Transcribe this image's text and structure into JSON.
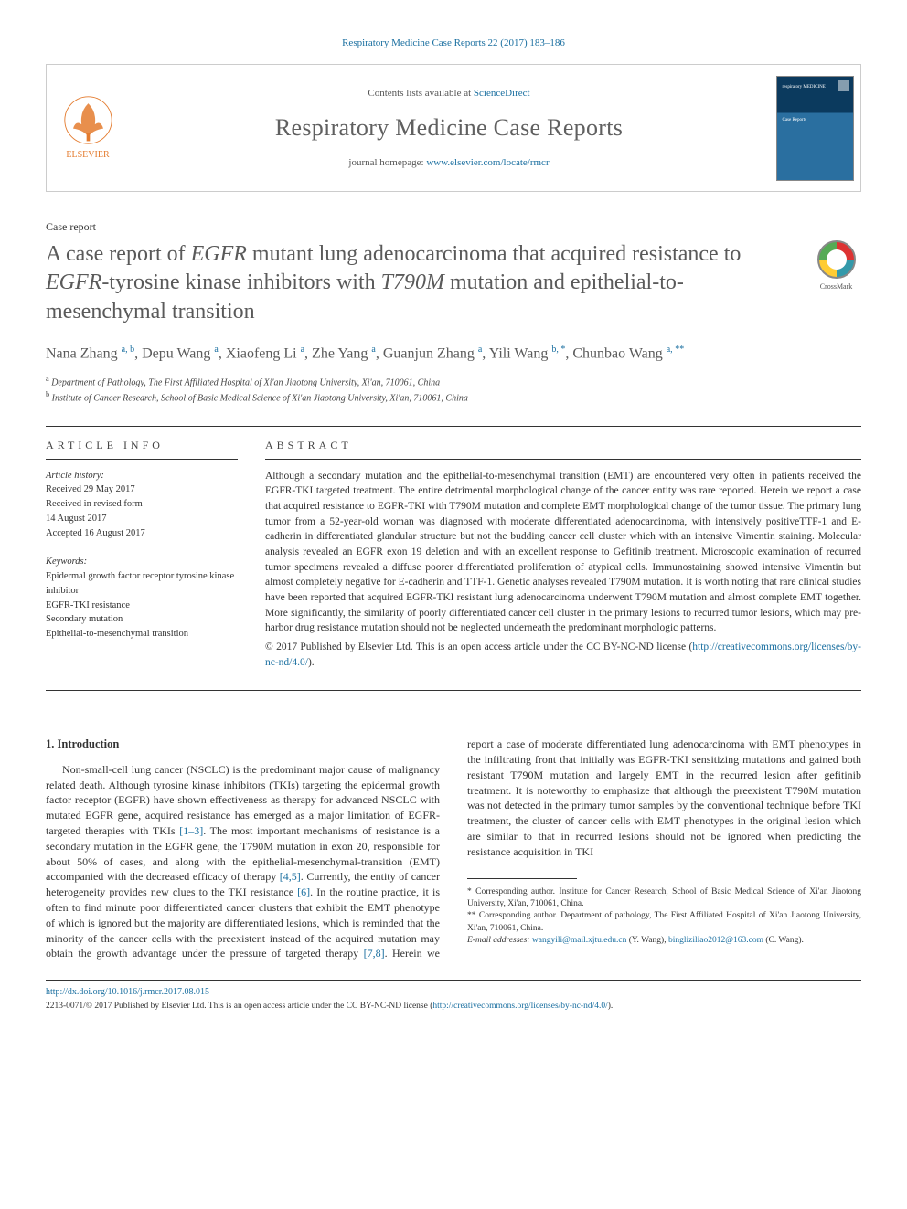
{
  "citation": "Respiratory Medicine Case Reports 22 (2017) 183–186",
  "header": {
    "contents_prefix": "Contents lists available at ",
    "contents_link": "ScienceDirect",
    "journal_name": "Respiratory Medicine Case Reports",
    "homepage_prefix": "journal homepage: ",
    "homepage_link": "www.elsevier.com/locate/rmcr",
    "elsevier_label": "ELSEVIER",
    "cover_top": "respiratory MEDICINE",
    "cover_sub": "Case Reports"
  },
  "doc_type": "Case report",
  "title": "A case report of EGFR mutant lung adenocarcinoma that acquired resistance to EGFR-tyrosine kinase inhibitors with T790M mutation and epithelial-to-mesenchymal transition",
  "crossmark_label": "CrossMark",
  "authors_html": "Nana Zhang <sup>a, b</sup>, Depu Wang <sup>a</sup>, Xiaofeng Li <sup>a</sup>, Zhe Yang <sup>a</sup>, Guanjun Zhang <sup>a</sup>, Yili Wang <sup>b, <span class='star'>*</span></sup>, Chunbao Wang <sup>a, <span class='star'>**</span></sup>",
  "affiliations": [
    {
      "sup": "a",
      "text": "Department of Pathology, The First Affiliated Hospital of Xi'an Jiaotong University, Xi'an, 710061, China"
    },
    {
      "sup": "b",
      "text": "Institute of Cancer Research, School of Basic Medical Science of Xi'an Jiaotong University, Xi'an, 710061, China"
    }
  ],
  "info": {
    "heading": "ARTICLE INFO",
    "history_label": "Article history:",
    "history_lines": [
      "Received 29 May 2017",
      "Received in revised form",
      "14 August 2017",
      "Accepted 16 August 2017"
    ],
    "keywords_label": "Keywords:",
    "keywords": [
      "Epidermal growth factor receptor tyrosine kinase inhibitor",
      "EGFR-TKI resistance",
      "Secondary mutation",
      "Epithelial-to-mesenchymal transition"
    ]
  },
  "abstract": {
    "heading": "ABSTRACT",
    "text": "Although a secondary mutation and the epithelial-to-mesenchymal transition (EMT) are encountered very often in patients received the EGFR-TKI targeted treatment. The entire detrimental morphological change of the cancer entity was rare reported. Herein we report a case that acquired resistance to EGFR-TKI with T790M mutation and complete EMT morphological change of the tumor tissue. The primary lung tumor from a 52-year-old woman was diagnosed with moderate differentiated adenocarcinoma, with intensively positiveTTF-1 and E-cadherin in differentiated glandular structure but not the budding cancer cell cluster which with an intensive Vimentin staining. Molecular analysis revealed an EGFR exon 19 deletion and with an excellent response to Gefitinib treatment. Microscopic examination of recurred tumor specimens revealed a diffuse poorer differentiated proliferation of atypical cells. Immunostaining showed intensive Vimentin but almost completely negative for E-cadherin and TTF-1. Genetic analyses revealed T790M mutation. It is worth noting that rare clinical studies have been reported that acquired EGFR-TKI resistant lung adenocarcinoma underwent T790M mutation and almost complete EMT together. More significantly, the similarity of poorly differentiated cancer cell cluster in the primary lesions to recurred tumor lesions, which may pre-harbor drug resistance mutation should not be neglected underneath the predominant morphologic patterns.",
    "copyright": "© 2017 Published by Elsevier Ltd. This is an open access article under the CC BY-NC-ND license (",
    "license_link_text": "http://creativecommons.org/licenses/by-nc-nd/4.0/",
    "copyright_close": ")."
  },
  "section1": {
    "heading": "1. Introduction",
    "para1": "Non-small-cell lung cancer (NSCLC) is the predominant major cause of malignancy related death. Although tyrosine kinase inhibitors (TKIs) targeting the epidermal growth factor receptor (EGFR) have shown effectiveness as therapy for advanced NSCLC with mutated EGFR gene, acquired resistance has emerged as a major limitation of EGFR-targeted therapies with TKIs ",
    "ref1": "[1–3]",
    "para1b": ". The most important mechanisms of resistance is a secondary mutation in the EGFR gene, the T790M mutation in exon 20, responsible for about 50% of cases, and along with the epithelial-mesenchymal-",
    "para2a": "transition (EMT) accompanied with the decreased efficacy of therapy ",
    "ref2": "[4,5]",
    "para2b": ". Currently, the entity of cancer heterogeneity provides new clues to the TKI resistance ",
    "ref3": "[6]",
    "para2c": ". In the routine practice, it is often to find minute poor differentiated cancer clusters that exhibit the EMT phenotype of which is ignored but the majority are differentiated lesions, which is reminded that the minority of the cancer cells with the preexistent instead of the acquired mutation may obtain the growth advantage under the pressure of targeted therapy ",
    "ref4": "[7,8]",
    "para2d": ". Herein we report a case of moderate differentiated lung adenocarcinoma with EMT phenotypes in the infiltrating front that initially was EGFR-TKI sensitizing mutations and gained both resistant T790M mutation and largely EMT in the recurred lesion after gefitinib treatment. It is noteworthy to emphasize that although the preexistent T790M mutation was not detected in the primary tumor samples by the conventional technique before TKI treatment, the cluster of cancer cells with EMT phenotypes in the original lesion which are similar to that in recurred lesions should not be ignored when predicting the resistance acquisition in TKI"
  },
  "footnotes": {
    "corr1": "* Corresponding author. Institute for Cancer Research, School of Basic Medical Science of Xi'an Jiaotong University, Xi'an, 710061, China.",
    "corr2": "** Corresponding author. Department of pathology, The First Affiliated Hospital of Xi'an Jiaotong University, Xi'an, 710061, China.",
    "email_label": "E-mail addresses: ",
    "email1": "wangyili@mail.xjtu.edu.cn",
    "email1_name": " (Y. Wang), ",
    "email2": "bingliziliao2012@163.com",
    "email2_name": " (C. Wang)."
  },
  "bottom": {
    "doi": "http://dx.doi.org/10.1016/j.rmcr.2017.08.015",
    "copyright": "2213-0071/© 2017 Published by Elsevier Ltd. This is an open access article under the CC BY-NC-ND license (",
    "license_link": "http://creativecommons.org/licenses/by-nc-nd/4.0/",
    "close": ")."
  },
  "colors": {
    "link": "#1a6fa0",
    "heading": "#5a5a5a",
    "body": "#333333",
    "elsevier_orange": "#e47b2e"
  }
}
